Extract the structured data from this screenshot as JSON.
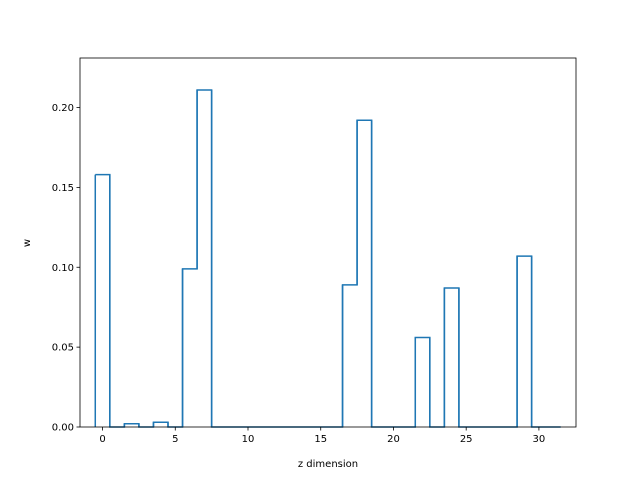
{
  "chart_data": {
    "type": "bar",
    "style": "step",
    "title": "",
    "xlabel": "z dimension",
    "ylabel": "w",
    "xlim": [
      -1.55,
      32.55
    ],
    "ylim": [
      0,
      0.231
    ],
    "grid": false,
    "x_ticks": [
      0,
      5,
      10,
      15,
      20,
      25,
      30
    ],
    "y_ticks": [
      0.0,
      0.05,
      0.1,
      0.15,
      0.2
    ],
    "x_tick_labels": [
      "0",
      "5",
      "10",
      "15",
      "20",
      "25",
      "30"
    ],
    "y_tick_labels": [
      "0.00",
      "0.05",
      "0.10",
      "0.15",
      "0.20"
    ],
    "x_start": -0.5,
    "bin_width": 1,
    "values": [
      0.158,
      0.0,
      0.002,
      0.0,
      0.003,
      0.0,
      0.099,
      0.211,
      0.0,
      0.0,
      0.0,
      0.0,
      0.0,
      0.0,
      0.0,
      0.0,
      0.0,
      0.089,
      0.192,
      0.0,
      0.0,
      0.0,
      0.056,
      0.0,
      0.087,
      0.0,
      0.0,
      0.0,
      0.0,
      0.107,
      0.0,
      0.0
    ],
    "color": "#1f77b4"
  }
}
